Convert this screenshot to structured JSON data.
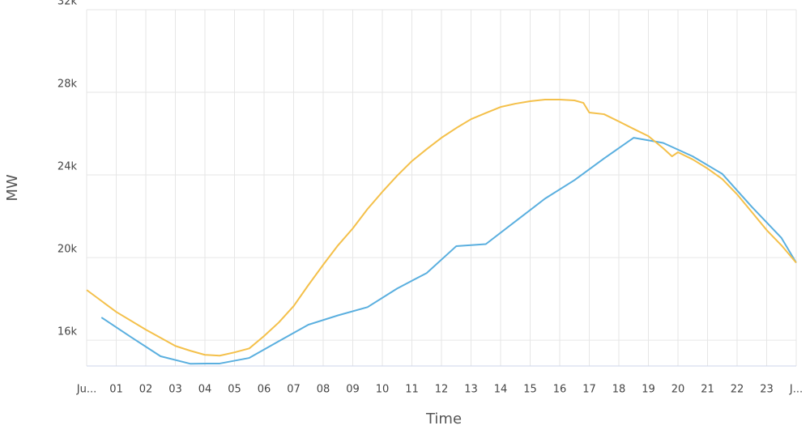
{
  "chart_data": {
    "type": "line",
    "x_label": "Time",
    "y_label": "MW",
    "xlim": [
      0,
      24
    ],
    "ylim": [
      14750,
      32000
    ],
    "xticks": [
      {
        "value": 0,
        "label": "Ju..."
      },
      {
        "value": 1,
        "label": "01"
      },
      {
        "value": 2,
        "label": "02"
      },
      {
        "value": 3,
        "label": "03"
      },
      {
        "value": 4,
        "label": "04"
      },
      {
        "value": 5,
        "label": "05"
      },
      {
        "value": 6,
        "label": "06"
      },
      {
        "value": 7,
        "label": "07"
      },
      {
        "value": 8,
        "label": "08"
      },
      {
        "value": 9,
        "label": "09"
      },
      {
        "value": 10,
        "label": "10"
      },
      {
        "value": 11,
        "label": "11"
      },
      {
        "value": 12,
        "label": "12"
      },
      {
        "value": 13,
        "label": "13"
      },
      {
        "value": 14,
        "label": "14"
      },
      {
        "value": 15,
        "label": "15"
      },
      {
        "value": 16,
        "label": "16"
      },
      {
        "value": 17,
        "label": "17"
      },
      {
        "value": 18,
        "label": "18"
      },
      {
        "value": 19,
        "label": "19"
      },
      {
        "value": 20,
        "label": "20"
      },
      {
        "value": 21,
        "label": "21"
      },
      {
        "value": 22,
        "label": "22"
      },
      {
        "value": 23,
        "label": "23"
      },
      {
        "value": 24,
        "label": "J..."
      }
    ],
    "yticks": [
      {
        "value": 16000,
        "label": "16k"
      },
      {
        "value": 20000,
        "label": "20k"
      },
      {
        "value": 24000,
        "label": "24k"
      },
      {
        "value": 28000,
        "label": "28k"
      },
      {
        "value": 32000,
        "label": "32k"
      }
    ],
    "grid": true,
    "series": [
      {
        "color": "#5aafdf",
        "x": [
          0.5,
          1.5,
          2.5,
          3.5,
          4.5,
          5.5,
          6.5,
          7.5,
          8.5,
          9.5,
          10.5,
          11.5,
          12.5,
          13.5,
          14.5,
          15.5,
          16.5,
          17.5,
          18.5,
          19.5,
          20.5,
          21.5,
          22.5,
          23.5,
          24
        ],
        "values": [
          17100,
          16150,
          15220,
          14860,
          14870,
          15140,
          15950,
          16750,
          17200,
          17600,
          18500,
          19250,
          20550,
          20650,
          21750,
          22850,
          23750,
          24800,
          25800,
          25550,
          24900,
          24050,
          22450,
          20950,
          19750
        ]
      },
      {
        "color": "#f4c04a",
        "x": [
          0,
          1,
          2,
          3,
          3.5,
          4,
          4.5,
          5,
          5.5,
          6,
          6.5,
          7,
          7.5,
          8,
          8.5,
          9,
          9.5,
          10,
          10.5,
          11,
          11.5,
          12,
          12.5,
          13,
          13.5,
          14,
          14.5,
          15,
          15.5,
          16,
          16.5,
          16.8,
          17,
          17.5,
          18,
          18.5,
          19,
          19.5,
          19.8,
          20,
          20.5,
          21,
          21.5,
          22,
          22.5,
          23,
          23.5,
          24
        ],
        "values": [
          18430,
          17370,
          16510,
          15720,
          15490,
          15290,
          15250,
          15410,
          15600,
          16200,
          16860,
          17650,
          18670,
          19650,
          20590,
          21410,
          22350,
          23180,
          23960,
          24670,
          25250,
          25800,
          26270,
          26700,
          27000,
          27290,
          27450,
          27570,
          27650,
          27650,
          27610,
          27490,
          27020,
          26940,
          26590,
          26230,
          25880,
          25290,
          24900,
          25100,
          24750,
          24310,
          23800,
          23060,
          22200,
          21330,
          20590,
          19750
        ]
      }
    ]
  }
}
